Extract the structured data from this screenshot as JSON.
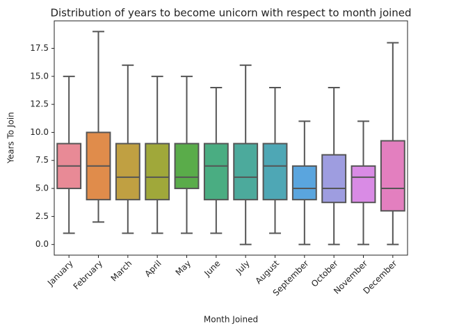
{
  "chart_data": {
    "type": "box",
    "title": "Distribution of years to become unicorn with respect to month joined",
    "x_label": "Month Joined",
    "y_label": "Years To Join",
    "categories": [
      "January",
      "February",
      "March",
      "April",
      "May",
      "June",
      "July",
      "August",
      "September",
      "October",
      "November",
      "December"
    ],
    "colors": [
      "#e88a96",
      "#e08c4b",
      "#c0a042",
      "#a0a83a",
      "#5aac4a",
      "#4aad82",
      "#4caa9c",
      "#4ea7b5",
      "#5aa5de",
      "#9e9de0",
      "#d98be5",
      "#e37fbf"
    ],
    "boxes": [
      {
        "whislo": 1,
        "q1": 5,
        "med": 7,
        "q3": 9,
        "whishi": 15
      },
      {
        "whislo": 2,
        "q1": 4,
        "med": 7,
        "q3": 10,
        "whishi": 19
      },
      {
        "whislo": 1,
        "q1": 4,
        "med": 6,
        "q3": 9,
        "whishi": 16
      },
      {
        "whislo": 1,
        "q1": 4,
        "med": 6,
        "q3": 9,
        "whishi": 15
      },
      {
        "whislo": 1,
        "q1": 5,
        "med": 6,
        "q3": 9,
        "whishi": 15
      },
      {
        "whislo": 1,
        "q1": 4,
        "med": 7,
        "q3": 9,
        "whishi": 14
      },
      {
        "whislo": 0,
        "q1": 4,
        "med": 6,
        "q3": 9,
        "whishi": 16
      },
      {
        "whislo": 1,
        "q1": 4,
        "med": 7,
        "q3": 9,
        "whishi": 14
      },
      {
        "whislo": 0,
        "q1": 4,
        "med": 5,
        "q3": 7,
        "whishi": 11
      },
      {
        "whislo": 0,
        "q1": 3.75,
        "med": 5,
        "q3": 8,
        "whishi": 14
      },
      {
        "whislo": 0,
        "q1": 3.75,
        "med": 6,
        "q3": 7,
        "whishi": 11
      },
      {
        "whislo": 0,
        "q1": 3,
        "med": 5,
        "q3": 9.25,
        "whishi": 18
      }
    ],
    "ylim": [
      -0.95,
      19.95
    ],
    "yticks": [
      {
        "value": 0,
        "label": "0.0"
      },
      2.5,
      {
        "value": 5,
        "label": "5.0"
      },
      7.5,
      {
        "value": 10,
        "label": "10.0"
      },
      12.5,
      {
        "value": 15,
        "label": "15.0"
      },
      17.5
    ],
    "grid": false
  }
}
